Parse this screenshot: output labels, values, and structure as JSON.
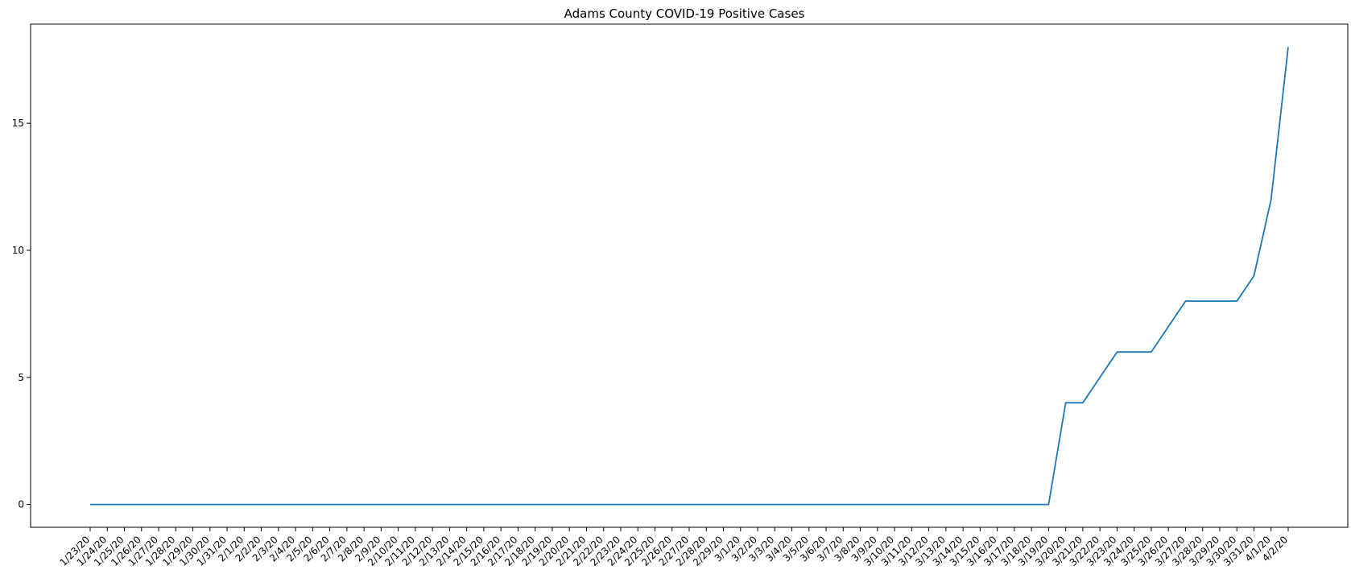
{
  "chart_data": {
    "type": "line",
    "title": "Adams County COVID-19 Positive Cases",
    "xlabel": "",
    "ylabel": "",
    "grid": false,
    "legend": "none",
    "ylim": [
      -0.9,
      18.9
    ],
    "yticks": [
      0,
      5,
      10,
      15
    ],
    "categories": [
      "1/23/20",
      "1/24/20",
      "1/25/20",
      "1/26/20",
      "1/27/20",
      "1/28/20",
      "1/29/20",
      "1/30/20",
      "1/31/20",
      "2/1/20",
      "2/2/20",
      "2/3/20",
      "2/4/20",
      "2/5/20",
      "2/6/20",
      "2/7/20",
      "2/8/20",
      "2/9/20",
      "2/10/20",
      "2/11/20",
      "2/12/20",
      "2/13/20",
      "2/14/20",
      "2/15/20",
      "2/16/20",
      "2/17/20",
      "2/18/20",
      "2/19/20",
      "2/20/20",
      "2/21/20",
      "2/22/20",
      "2/23/20",
      "2/24/20",
      "2/25/20",
      "2/26/20",
      "2/27/20",
      "2/28/20",
      "2/29/20",
      "3/1/20",
      "3/2/20",
      "3/3/20",
      "3/4/20",
      "3/5/20",
      "3/6/20",
      "3/7/20",
      "3/8/20",
      "3/9/20",
      "3/10/20",
      "3/11/20",
      "3/12/20",
      "3/13/20",
      "3/14/20",
      "3/15/20",
      "3/16/20",
      "3/17/20",
      "3/18/20",
      "3/19/20",
      "3/20/20",
      "3/21/20",
      "3/22/20",
      "3/23/20",
      "3/24/20",
      "3/25/20",
      "3/26/20",
      "3/27/20",
      "3/28/20",
      "3/29/20",
      "3/30/20",
      "3/31/20",
      "4/1/20",
      "4/2/20"
    ],
    "series": [
      {
        "color": "#1f77b4",
        "values": [
          0,
          0,
          0,
          0,
          0,
          0,
          0,
          0,
          0,
          0,
          0,
          0,
          0,
          0,
          0,
          0,
          0,
          0,
          0,
          0,
          0,
          0,
          0,
          0,
          0,
          0,
          0,
          0,
          0,
          0,
          0,
          0,
          0,
          0,
          0,
          0,
          0,
          0,
          0,
          0,
          0,
          0,
          0,
          0,
          0,
          0,
          0,
          0,
          0,
          0,
          0,
          0,
          0,
          0,
          0,
          0,
          0,
          4,
          4,
          5,
          6,
          6,
          6,
          7,
          8,
          8,
          8,
          8,
          9,
          12,
          18
        ]
      }
    ]
  }
}
